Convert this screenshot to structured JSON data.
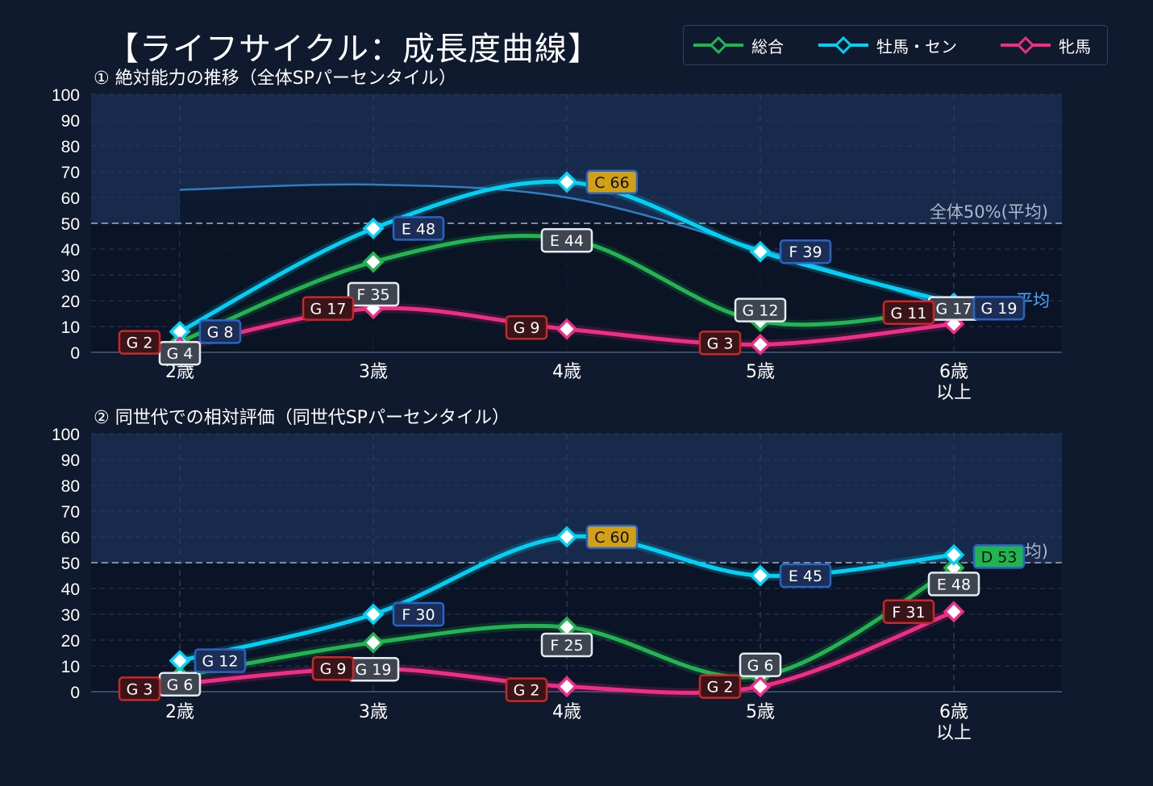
{
  "page": {
    "title": "【ライフサイクル：成長度曲線】"
  },
  "legend": [
    {
      "label": "総合",
      "color": "#22b450"
    },
    {
      "label": "牡馬・セン",
      "color": "#00d2f5"
    },
    {
      "label": "牝馬",
      "color": "#f02d87"
    }
  ],
  "colors": {
    "background": "#0f1a2e",
    "plot_band_upper": "#172a4c",
    "plot_band_lower": "#0b1426",
    "avg_line": "#7f8ba0",
    "grade_bad": "#c82828",
    "grade_neutral": "#e6ebf0",
    "grade_good": "#2864c8",
    "grade_top": "#d2a014",
    "grade_d": "#22b450"
  },
  "chart_data": [
    {
      "type": "line",
      "title": "① 絶対能力の推移（全体SPパーセンタイル）",
      "categories": [
        "2歳",
        "3歳",
        "4歳",
        "5歳",
        "6歳\n以上"
      ],
      "ylim": [
        0,
        100
      ],
      "yticks": [
        0,
        10,
        20,
        30,
        40,
        50,
        60,
        70,
        80,
        90,
        100
      ],
      "reference_line": {
        "value": 50,
        "label": "全体50%(平均)"
      },
      "secondary_label": "平均",
      "secondary_label_color": "#4da6ff",
      "trend_line": {
        "values": [
          63,
          65,
          60,
          40,
          17
        ],
        "color": "#2f7ec0"
      },
      "series": [
        {
          "name": "総合",
          "color": "#22b450",
          "values": [
            4,
            35,
            44,
            12,
            17
          ],
          "labels": [
            "G 4",
            "F 35",
            "E 44",
            "G 12",
            "G 17"
          ],
          "label_style": [
            "neutral",
            "neutral",
            "neutral",
            "neutral",
            "neutral"
          ]
        },
        {
          "name": "牡馬・セン",
          "color": "#00d2f5",
          "values": [
            8,
            48,
            66,
            39,
            19
          ],
          "labels": [
            "G 8",
            "E 48",
            "C 66",
            "F 39",
            "G 19"
          ],
          "label_style": [
            "good",
            "good",
            "top",
            "good",
            "good"
          ]
        },
        {
          "name": "牝馬",
          "color": "#f02d87",
          "values": [
            2,
            17,
            9,
            3,
            11
          ],
          "labels": [
            "G 2",
            "G 17",
            "G 9",
            "G 3",
            "G 11"
          ],
          "label_style": [
            "bad",
            "bad",
            "bad",
            "bad",
            "bad"
          ]
        }
      ]
    },
    {
      "type": "line",
      "title": "② 同世代での相対評価（同世代SPパーセンタイル）",
      "categories": [
        "2歳",
        "3歳",
        "4歳",
        "5歳",
        "6歳\n以上"
      ],
      "ylim": [
        0,
        100
      ],
      "yticks": [
        0,
        10,
        20,
        30,
        40,
        50,
        60,
        70,
        80,
        90,
        100
      ],
      "reference_line": {
        "value": 50,
        "label": "均)"
      },
      "series": [
        {
          "name": "総合",
          "color": "#22b450",
          "values": [
            6,
            19,
            25,
            6,
            48
          ],
          "labels": [
            "G 6",
            "G 19",
            "F 25",
            "G 6",
            "E 48"
          ],
          "label_style": [
            "neutral",
            "neutral",
            "neutral",
            "neutral",
            "neutral"
          ]
        },
        {
          "name": "牡馬・セン",
          "color": "#00d2f5",
          "values": [
            12,
            30,
            60,
            45,
            53
          ],
          "labels": [
            "G 12",
            "F 30",
            "C 60",
            "E 45",
            "D 53"
          ],
          "label_style": [
            "good",
            "good",
            "top",
            "good",
            "d"
          ]
        },
        {
          "name": "牝馬",
          "color": "#f02d87",
          "values": [
            3,
            9,
            2,
            2,
            31
          ],
          "labels": [
            "G 3",
            "G 9",
            "G 2",
            "G 2",
            "F 31"
          ],
          "label_style": [
            "bad",
            "bad",
            "bad",
            "bad",
            "bad"
          ]
        }
      ]
    }
  ]
}
